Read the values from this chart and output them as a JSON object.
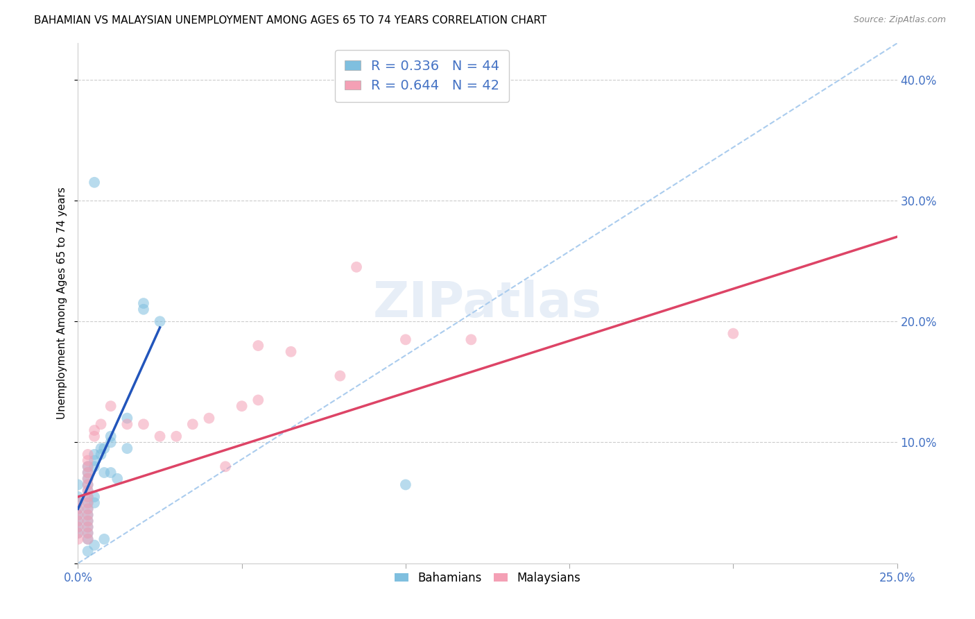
{
  "title": "BAHAMIAN VS MALAYSIAN UNEMPLOYMENT AMONG AGES 65 TO 74 YEARS CORRELATION CHART",
  "source": "Source: ZipAtlas.com",
  "ylabel": "Unemployment Among Ages 65 to 74 years",
  "xlim": [
    0.0,
    0.25
  ],
  "ylim": [
    0.0,
    0.43
  ],
  "xticks": [
    0.0,
    0.05,
    0.1,
    0.15,
    0.2,
    0.25
  ],
  "yticks": [
    0.0,
    0.1,
    0.2,
    0.3,
    0.4
  ],
  "bahamian_R": 0.336,
  "bahamian_N": 44,
  "malaysian_R": 0.644,
  "malaysian_N": 42,
  "blue_color": "#7fbfdf",
  "pink_color": "#f4a0b5",
  "blue_line_color": "#2255bb",
  "pink_line_color": "#dd4466",
  "diag_color": "#aaccee",
  "blue_scatter": [
    [
      0.0,
      0.065
    ],
    [
      0.0,
      0.055
    ],
    [
      0.0,
      0.05
    ],
    [
      0.0,
      0.045
    ],
    [
      0.0,
      0.04
    ],
    [
      0.0,
      0.035
    ],
    [
      0.0,
      0.03
    ],
    [
      0.0,
      0.025
    ],
    [
      0.003,
      0.08
    ],
    [
      0.003,
      0.075
    ],
    [
      0.003,
      0.07
    ],
    [
      0.003,
      0.065
    ],
    [
      0.003,
      0.06
    ],
    [
      0.003,
      0.055
    ],
    [
      0.003,
      0.05
    ],
    [
      0.003,
      0.045
    ],
    [
      0.003,
      0.04
    ],
    [
      0.003,
      0.035
    ],
    [
      0.003,
      0.03
    ],
    [
      0.003,
      0.025
    ],
    [
      0.003,
      0.02
    ],
    [
      0.005,
      0.09
    ],
    [
      0.005,
      0.085
    ],
    [
      0.005,
      0.08
    ],
    [
      0.007,
      0.095
    ],
    [
      0.007,
      0.09
    ],
    [
      0.008,
      0.095
    ],
    [
      0.01,
      0.105
    ],
    [
      0.01,
      0.1
    ],
    [
      0.015,
      0.12
    ],
    [
      0.02,
      0.215
    ],
    [
      0.02,
      0.21
    ],
    [
      0.025,
      0.2
    ],
    [
      0.005,
      0.055
    ],
    [
      0.005,
      0.05
    ],
    [
      0.008,
      0.075
    ],
    [
      0.01,
      0.075
    ],
    [
      0.012,
      0.07
    ],
    [
      0.003,
      0.01
    ],
    [
      0.005,
      0.015
    ],
    [
      0.008,
      0.02
    ],
    [
      0.1,
      0.065
    ],
    [
      0.005,
      0.315
    ],
    [
      0.015,
      0.095
    ]
  ],
  "malaysian_scatter": [
    [
      0.0,
      0.05
    ],
    [
      0.0,
      0.045
    ],
    [
      0.0,
      0.04
    ],
    [
      0.0,
      0.035
    ],
    [
      0.0,
      0.03
    ],
    [
      0.0,
      0.025
    ],
    [
      0.0,
      0.02
    ],
    [
      0.003,
      0.09
    ],
    [
      0.003,
      0.085
    ],
    [
      0.003,
      0.08
    ],
    [
      0.003,
      0.075
    ],
    [
      0.003,
      0.07
    ],
    [
      0.003,
      0.065
    ],
    [
      0.003,
      0.06
    ],
    [
      0.003,
      0.055
    ],
    [
      0.003,
      0.05
    ],
    [
      0.003,
      0.045
    ],
    [
      0.003,
      0.04
    ],
    [
      0.003,
      0.035
    ],
    [
      0.003,
      0.03
    ],
    [
      0.003,
      0.025
    ],
    [
      0.003,
      0.02
    ],
    [
      0.005,
      0.11
    ],
    [
      0.005,
      0.105
    ],
    [
      0.007,
      0.115
    ],
    [
      0.01,
      0.13
    ],
    [
      0.015,
      0.115
    ],
    [
      0.02,
      0.115
    ],
    [
      0.025,
      0.105
    ],
    [
      0.035,
      0.115
    ],
    [
      0.04,
      0.12
    ],
    [
      0.05,
      0.13
    ],
    [
      0.055,
      0.135
    ],
    [
      0.065,
      0.175
    ],
    [
      0.08,
      0.155
    ],
    [
      0.085,
      0.245
    ],
    [
      0.1,
      0.185
    ],
    [
      0.12,
      0.185
    ],
    [
      0.2,
      0.19
    ],
    [
      0.055,
      0.18
    ],
    [
      0.03,
      0.105
    ],
    [
      0.045,
      0.08
    ]
  ],
  "blue_trend_x": [
    0.0,
    0.025
  ],
  "blue_trend_y": [
    0.045,
    0.195
  ],
  "pink_trend_x": [
    0.0,
    0.25
  ],
  "pink_trend_y": [
    0.055,
    0.27
  ]
}
